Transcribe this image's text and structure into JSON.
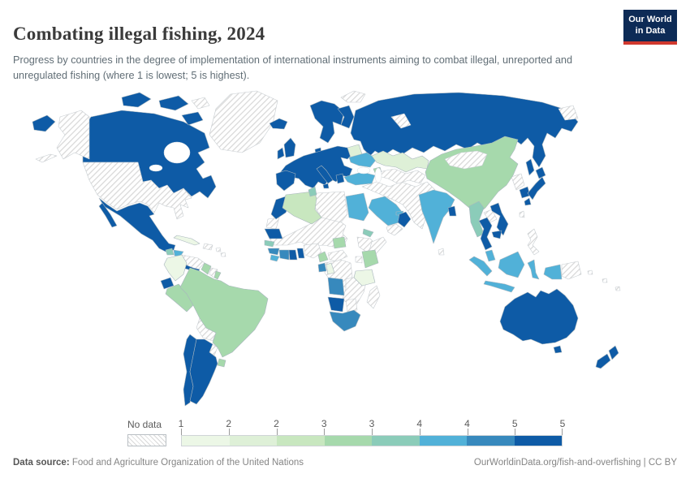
{
  "header": {
    "title": "Combating illegal fishing, 2024",
    "subtitle": "Progress by countries in the degree of implementation of international instruments aiming to combat illegal, unreported and unregulated fishing (where 1 is lowest; 5 is highest)."
  },
  "logo": {
    "line1": "Our World",
    "line2": "in Data",
    "bg_color": "#0d2b56",
    "accent_color": "#d0382e"
  },
  "legend": {
    "no_data_label": "No data",
    "tick_labels": [
      "1",
      "2",
      "2",
      "3",
      "3",
      "4",
      "4",
      "5",
      "5"
    ],
    "colors": [
      "#ecf7e6",
      "#def0d7",
      "#c8e7bf",
      "#a6d9ac",
      "#8bccb9",
      "#51b1d8",
      "#3789bd",
      "#0e5ba6"
    ]
  },
  "footer": {
    "source_label": "Data source:",
    "source_text": " Food and Agriculture Organization of the United Nations",
    "link_text": "OurWorldinData.org/fish-and-overfishing | CC BY"
  },
  "map": {
    "border_color": "#a9b6be",
    "no_data_border_color": "#c7cdd1",
    "hatch_line_color": "#d8d8d8",
    "countries": {
      "greenland": 0,
      "svalbard": 0,
      "novaya-zemlya": 0,
      "severnaya-zemlya": 0,
      "arctic-hatch": 0,
      "alaska": 0,
      "aleutians": 0,
      "united-states": 0,
      "hispaniola": 0,
      "caribbean-a": 0,
      "caribbean-b": 0,
      "venezuela": 0,
      "suriname": 0,
      "bolivia": 0,
      "paraguay": 0,
      "western-sahara": 0,
      "sahel-sudan": 0,
      "libya": 0,
      "nigeria": 0,
      "central-african-republic": 0,
      "ethiopia": 0,
      "somalia": 0,
      "uganda": 0,
      "drc": 0,
      "zambia-zimbabwe-mozambique": 0,
      "botswana": 0,
      "madagascar": 0,
      "yemen": 0,
      "middle-east": 0,
      "central-asia": 0,
      "mongolia": 0,
      "north-korea": 0,
      "sri-lanka": 0,
      "taiwan": 0,
      "laos": 0,
      "philippines": 0,
      "papua-new-guinea": 0,
      "pacific-a": 0,
      "pacific-b": 0,
      "pacific-c": 0,
      "colombia": 1,
      "cuba": 1,
      "tanzania": 1,
      "congo": 1,
      "kazakhstan": 2,
      "belarus": 2,
      "algeria": 3,
      "brazil": 4,
      "peru": 4,
      "uruguay": 4,
      "guyana": 4,
      "french-guiana": 4,
      "china": 4,
      "kenya": 4,
      "cameroon": 4,
      "south-sudan": 4,
      "georgia": 4,
      "guatemala": 5,
      "tunisia": 5,
      "senegal": 5,
      "eritrea": 5,
      "myanmar": 5,
      "ukraine": 6,
      "turkey": 6,
      "egypt": 6,
      "saudi-arabia": 6,
      "uae": 6,
      "india": 6,
      "honduras": 6,
      "sierra-leone-liberia": 6,
      "malaysia-peninsular": 6,
      "borneo": 6,
      "indonesia-sumatra": 6,
      "indonesia-java": 6,
      "indonesia-sulawesi": 6,
      "indonesia-papua": 6,
      "guinea": 7,
      "cote-divoire": 7,
      "gabon": 7,
      "angola": 7,
      "south-africa": 7,
      "chukotka": 8,
      "canada": 8,
      "arctic-a": 8,
      "arctic-b": 8,
      "arctic-c": 8,
      "iceland": 8,
      "mexico": 8,
      "mexico-baja": 8,
      "central-america-south": 8,
      "ecuador": 8,
      "chile": 8,
      "argentina": 8,
      "norway-sweden": 8,
      "finland": 8,
      "denmark": 8,
      "united-kingdom": 8,
      "ireland": 8,
      "europe-mainland": 8,
      "iberia": 8,
      "italy": 8,
      "sicily": 8,
      "greece": 8,
      "russia": 8,
      "sakhalin": 8,
      "morocco": 8,
      "mauritania": 8,
      "ghana": 8,
      "benin": 8,
      "namibia": 8,
      "oman": 8,
      "bangladesh": 8,
      "south-korea": 8,
      "japan-hokkaido": 8,
      "japan-honshu": 8,
      "japan-kyushu": 8,
      "thailand": 8,
      "vietnam": 8,
      "cambodia": 8,
      "australia": 8,
      "tasmania": 8,
      "new-zealand-north": 8,
      "new-zealand-south": 8
    }
  }
}
